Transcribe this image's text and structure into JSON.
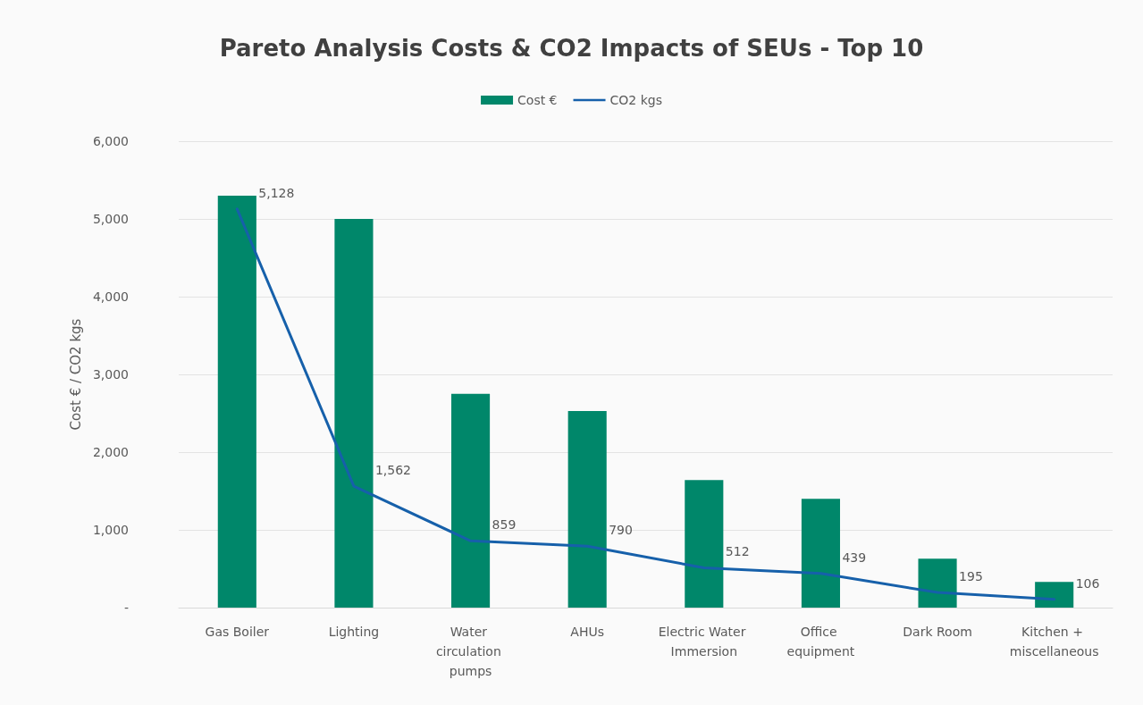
{
  "chart_data": {
    "type": "bar",
    "title": "Pareto Analysis Costs & CO2 Impacts of SEUs - Top 10",
    "ylabel": "Cost € / CO2 kgs",
    "categories": [
      "Gas Boiler",
      "Lighting",
      "Water circulation pumps",
      "AHUs",
      "Electric Water Immersion",
      "Office equipment",
      "Dark Room",
      "Kitchen + miscellaneous"
    ],
    "series": [
      {
        "name": "Cost €",
        "color": "#00876a",
        "values": [
          5300,
          5000,
          2750,
          2530,
          1640,
          1400,
          630,
          330
        ]
      },
      {
        "name": "CO2 kgs",
        "type": "line",
        "color": "#1660aa",
        "values": [
          5128,
          1562,
          859,
          790,
          512,
          439,
          195,
          106
        ],
        "value_labels": [
          "5,128",
          "1,562",
          "859",
          "790",
          "512",
          "439",
          "195",
          "106"
        ]
      }
    ],
    "ylim": [
      0,
      6000
    ],
    "yticks": [
      {
        "value": 0,
        "label": "-"
      },
      {
        "value": 1000,
        "label": "1,000"
      },
      {
        "value": 2000,
        "label": "2,000"
      },
      {
        "value": 3000,
        "label": "3,000"
      },
      {
        "value": 4000,
        "label": "4,000"
      },
      {
        "value": 5000,
        "label": "5,000"
      },
      {
        "value": 6000,
        "label": "6,000"
      }
    ],
    "grid": "y",
    "legend": "top",
    "marker": "none"
  }
}
